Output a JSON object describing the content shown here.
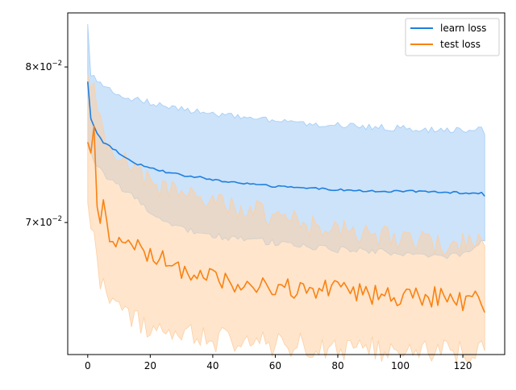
{
  "chart_data": {
    "type": "line",
    "title": "",
    "xlabel": "",
    "ylabel": "",
    "xlim": [
      -6.4,
      133.4
    ],
    "ylim": [
      0.0625,
      0.0838
    ],
    "yscale": "log",
    "grid": false,
    "legend_position": "top-right",
    "x_ticks": [
      {
        "value": 0,
        "label": "0"
      },
      {
        "value": 20,
        "label": "20"
      },
      {
        "value": 40,
        "label": "40"
      },
      {
        "value": 60,
        "label": "60"
      },
      {
        "value": 80,
        "label": "80"
      },
      {
        "value": 100,
        "label": "100"
      },
      {
        "value": 120,
        "label": "120"
      }
    ],
    "y_ticks": [
      {
        "value": 0.07,
        "mantissa": "7",
        "base": "10",
        "exponent": "−2"
      },
      {
        "value": 0.08,
        "mantissa": "8",
        "base": "10",
        "exponent": "−2"
      }
    ],
    "series": [
      {
        "name": "learn loss",
        "color": "#1f77b4",
        "line_color": "#1f7fde",
        "band_color": "#a3ccf5",
        "x_start": 0,
        "x_end": 127,
        "mean_knots": [
          [
            0,
            0.079
          ],
          [
            1,
            0.0765
          ],
          [
            3,
            0.0756
          ],
          [
            5,
            0.075
          ],
          [
            8,
            0.0746
          ],
          [
            12,
            0.074
          ],
          [
            16,
            0.0736
          ],
          [
            20,
            0.0734
          ],
          [
            25,
            0.0731
          ],
          [
            30,
            0.0729
          ],
          [
            35,
            0.0728
          ],
          [
            40,
            0.0726
          ],
          [
            50,
            0.0724
          ],
          [
            60,
            0.0722
          ],
          [
            70,
            0.0721
          ],
          [
            80,
            0.072
          ],
          [
            90,
            0.0719
          ],
          [
            100,
            0.0719
          ],
          [
            110,
            0.0719
          ],
          [
            120,
            0.0718
          ],
          [
            126,
            0.0718
          ],
          [
            127,
            0.0716
          ]
        ],
        "upper_knots": [
          [
            0,
            0.083
          ],
          [
            1,
            0.0795
          ],
          [
            5,
            0.0787
          ],
          [
            10,
            0.078
          ],
          [
            20,
            0.0776
          ],
          [
            30,
            0.0772
          ],
          [
            40,
            0.0768
          ],
          [
            50,
            0.0766
          ],
          [
            60,
            0.0764
          ],
          [
            70,
            0.0762
          ],
          [
            80,
            0.0761
          ],
          [
            90,
            0.076
          ],
          [
            100,
            0.0759
          ],
          [
            110,
            0.0758
          ],
          [
            120,
            0.0758
          ],
          [
            126,
            0.0758
          ],
          [
            127,
            0.0755
          ]
        ],
        "lower_knots": [
          [
            0,
            0.0747
          ],
          [
            2,
            0.0738
          ],
          [
            5,
            0.073
          ],
          [
            10,
            0.0722
          ],
          [
            15,
            0.0715
          ],
          [
            20,
            0.0705
          ],
          [
            25,
            0.07
          ],
          [
            30,
            0.0697
          ],
          [
            40,
            0.0692
          ],
          [
            50,
            0.069
          ],
          [
            60,
            0.0688
          ],
          [
            70,
            0.0686
          ],
          [
            80,
            0.0684
          ],
          [
            90,
            0.0683
          ],
          [
            100,
            0.0682
          ],
          [
            110,
            0.0681
          ],
          [
            120,
            0.068
          ],
          [
            127,
            0.0689
          ]
        ],
        "noise_mean": 6e-05,
        "noise_band": 0.0002
      },
      {
        "name": "test loss",
        "color": "#ff7f0e",
        "line_color": "#f98212",
        "band_color": "#fdcfa3",
        "x_start": 0,
        "x_end": 127,
        "mean_knots": [
          [
            0,
            0.075
          ],
          [
            1,
            0.074
          ],
          [
            2,
            0.0755
          ],
          [
            3,
            0.0715
          ],
          [
            4,
            0.0705
          ],
          [
            5,
            0.071
          ],
          [
            7,
            0.0685
          ],
          [
            10,
            0.069
          ],
          [
            15,
            0.0685
          ],
          [
            20,
            0.068
          ],
          [
            25,
            0.0677
          ],
          [
            30,
            0.0672
          ],
          [
            35,
            0.067
          ],
          [
            40,
            0.0668
          ],
          [
            45,
            0.0665
          ],
          [
            50,
            0.0663
          ],
          [
            60,
            0.0662
          ],
          [
            70,
            0.0661
          ],
          [
            80,
            0.066
          ],
          [
            90,
            0.0658
          ],
          [
            100,
            0.0657
          ],
          [
            110,
            0.0657
          ],
          [
            120,
            0.0655
          ],
          [
            126,
            0.0654
          ],
          [
            127,
            0.0648
          ]
        ],
        "upper_knots": [
          [
            0,
            0.0795
          ],
          [
            2,
            0.079
          ],
          [
            4,
            0.0765
          ],
          [
            6,
            0.0745
          ],
          [
            10,
            0.074
          ],
          [
            15,
            0.0735
          ],
          [
            20,
            0.0725
          ],
          [
            25,
            0.072
          ],
          [
            30,
            0.0717
          ],
          [
            40,
            0.0712
          ],
          [
            50,
            0.0708
          ],
          [
            60,
            0.0704
          ],
          [
            70,
            0.0698
          ],
          [
            80,
            0.0696
          ],
          [
            90,
            0.0693
          ],
          [
            100,
            0.069
          ],
          [
            110,
            0.0688
          ],
          [
            120,
            0.0687
          ],
          [
            127,
            0.0686
          ]
        ],
        "lower_knots": [
          [
            0,
            0.0712
          ],
          [
            2,
            0.069
          ],
          [
            4,
            0.0665
          ],
          [
            7,
            0.0655
          ],
          [
            10,
            0.065
          ],
          [
            15,
            0.0643
          ],
          [
            20,
            0.064
          ],
          [
            30,
            0.0636
          ],
          [
            40,
            0.0633
          ],
          [
            50,
            0.0632
          ],
          [
            60,
            0.063
          ],
          [
            70,
            0.063
          ],
          [
            80,
            0.0629
          ],
          [
            90,
            0.0628
          ],
          [
            100,
            0.0628
          ],
          [
            110,
            0.0628
          ],
          [
            120,
            0.0627
          ],
          [
            127,
            0.0627
          ]
        ],
        "noise_mean": 0.0006,
        "noise_band": 0.0007
      }
    ]
  }
}
